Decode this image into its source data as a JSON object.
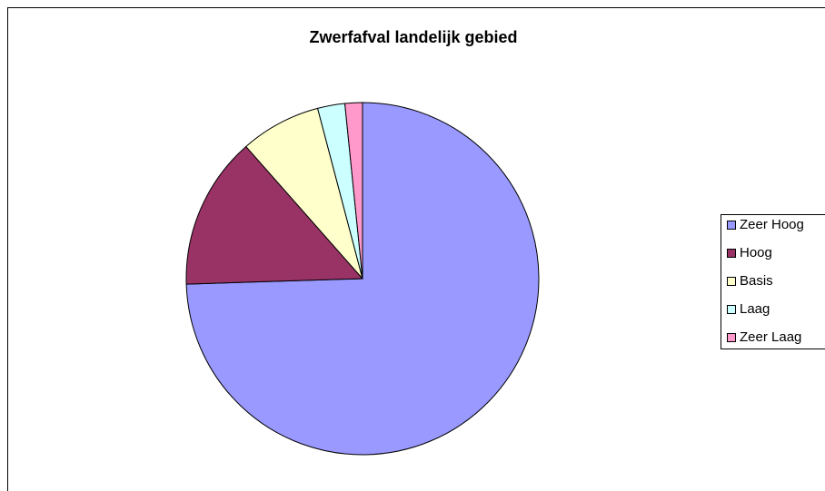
{
  "chart_data": {
    "type": "pie",
    "title": "Zwerfafval landelijk gebied",
    "categories": [
      "Zeer Hoog",
      "Hoog",
      "Basis",
      "Laag",
      "Zeer Laag"
    ],
    "values": [
      74.5,
      14,
      7.4,
      2.5,
      1.6
    ],
    "colors": [
      "#9999ff",
      "#993366",
      "#ffffcc",
      "#ccffff",
      "#ff99cc"
    ],
    "legend": "right"
  }
}
